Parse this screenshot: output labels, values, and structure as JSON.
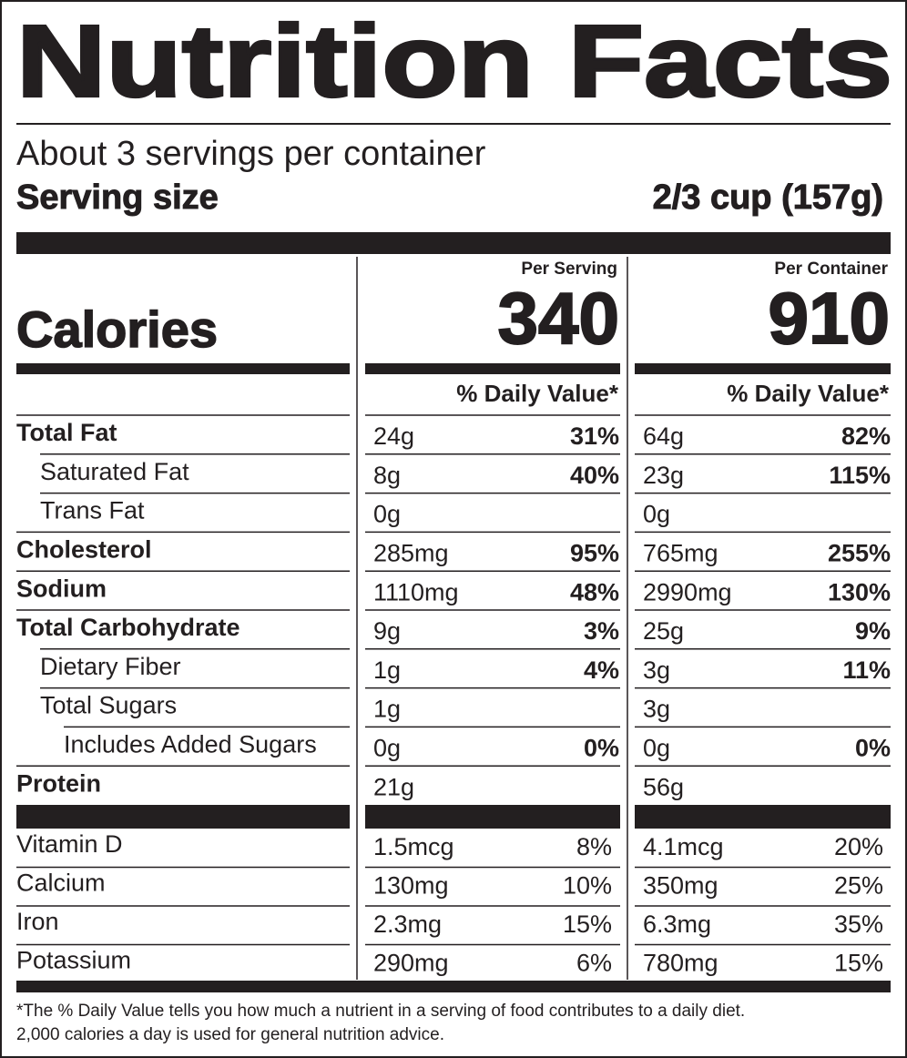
{
  "title": "Nutrition Facts",
  "servings": "About 3 servings per container",
  "serving_size_label": "Serving size",
  "serving_size": "2/3 cup (157g)",
  "calories_label": "Calories",
  "columns": [
    {
      "heading": "Per Serving",
      "calories": "340",
      "dv_header": "% Daily Value*"
    },
    {
      "heading": "Per Container",
      "calories": "910",
      "dv_header": "% Daily Value*"
    }
  ],
  "nutrients": [
    {
      "name": "Total Fat",
      "bold": true,
      "indent": 0,
      "values": [
        [
          "24g",
          "31%"
        ],
        [
          "64g",
          "82%"
        ]
      ]
    },
    {
      "name": "Saturated Fat",
      "bold": false,
      "indent": 1,
      "values": [
        [
          "8g",
          "40%"
        ],
        [
          "23g",
          "115%"
        ]
      ]
    },
    {
      "name": "Trans Fat",
      "bold": false,
      "indent": 1,
      "values": [
        [
          "0g"
        ],
        [
          "0g"
        ]
      ]
    },
    {
      "name": "Cholesterol",
      "bold": true,
      "indent": 0,
      "values": [
        [
          "285mg",
          "95%"
        ],
        [
          "765mg",
          "255%"
        ]
      ]
    },
    {
      "name": "Sodium",
      "bold": true,
      "indent": 0,
      "values": [
        [
          "1110mg",
          "48%"
        ],
        [
          "2990mg",
          "130%"
        ]
      ]
    },
    {
      "name": "Total Carbohydrate",
      "bold": true,
      "indent": 0,
      "values": [
        [
          "9g",
          "3%"
        ],
        [
          "25g",
          "9%"
        ]
      ]
    },
    {
      "name": "Dietary Fiber",
      "bold": false,
      "indent": 1,
      "values": [
        [
          "1g",
          "4%"
        ],
        [
          "3g",
          "11%"
        ]
      ]
    },
    {
      "name": "Total Sugars",
      "bold": false,
      "indent": 1,
      "values": [
        [
          "1g"
        ],
        [
          "3g"
        ]
      ]
    },
    {
      "name": "Includes Added Sugars",
      "bold": false,
      "indent": 2,
      "values": [
        [
          "0g",
          "0%"
        ],
        [
          "0g",
          "0%"
        ]
      ]
    },
    {
      "name": "Protein",
      "bold": true,
      "indent": 0,
      "values": [
        [
          "21g"
        ],
        [
          "56g"
        ]
      ]
    }
  ],
  "vitamins": [
    {
      "name": "Vitamin D",
      "values": [
        [
          "1.5mcg",
          "8%"
        ],
        [
          "4.1mcg",
          "20%"
        ]
      ]
    },
    {
      "name": "Calcium",
      "values": [
        [
          "130mg",
          "10%"
        ],
        [
          "350mg",
          "25%"
        ]
      ]
    },
    {
      "name": "Iron",
      "values": [
        [
          "2.3mg",
          "15%"
        ],
        [
          "6.3mg",
          "35%"
        ]
      ]
    },
    {
      "name": "Potassium",
      "values": [
        [
          "290mg",
          "6%"
        ],
        [
          "780mg",
          "15%"
        ]
      ]
    }
  ],
  "footnote": [
    "*The % Daily Value tells you how much a nutrient in a serving of food contributes to a daily diet.",
    "2,000 calories a day is used for general nutrition advice."
  ]
}
